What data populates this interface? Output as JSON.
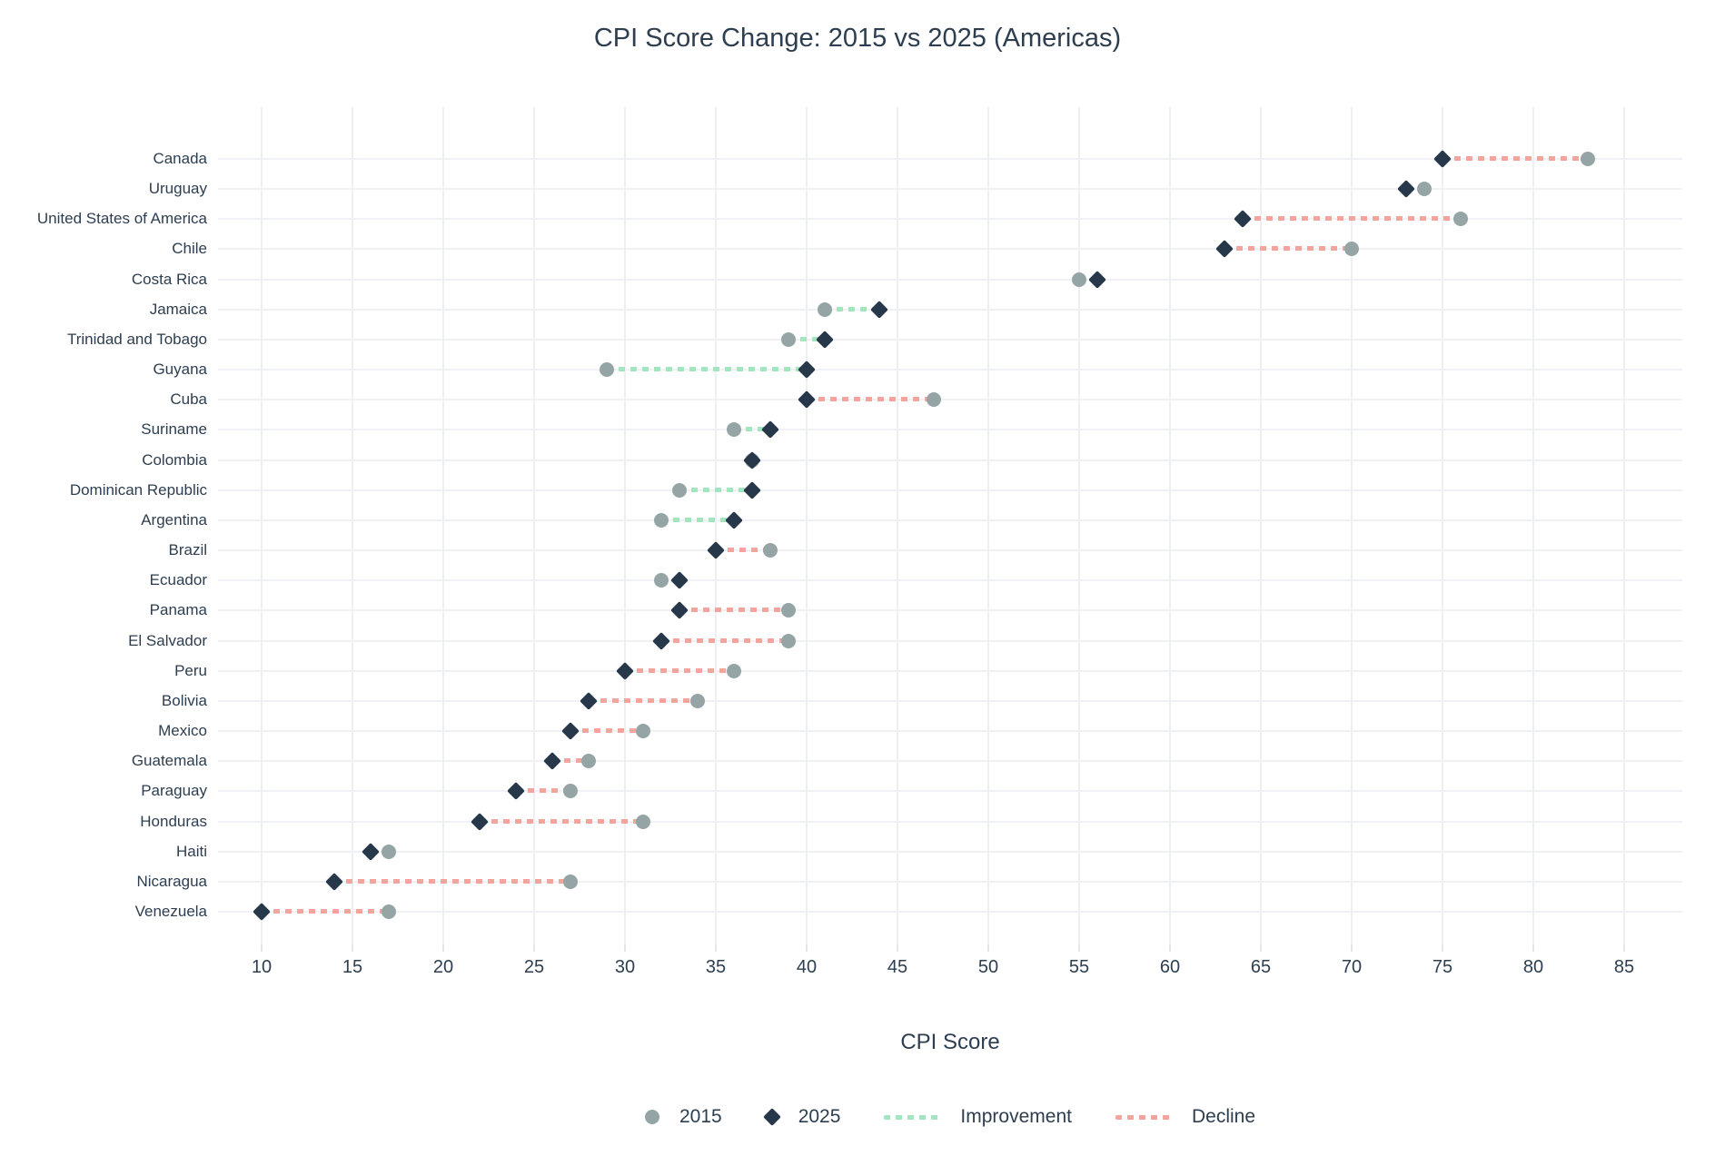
{
  "title": "CPI Score Change: 2015 vs 2025 (Americas)",
  "chart_data": {
    "type": "scatter",
    "variant": "dumbbell",
    "title": "CPI Score Change: 2015 vs 2025 (Americas)",
    "xlabel": "CPI Score",
    "xlim": [
      7.5,
      88
    ],
    "xticks": [
      10,
      15,
      20,
      25,
      30,
      35,
      40,
      45,
      50,
      55,
      60,
      65,
      70,
      75,
      80,
      85
    ],
    "grid": true,
    "legend_position": "bottom",
    "series_names": [
      "2015",
      "2025"
    ],
    "rows": [
      {
        "country": "Canada",
        "y2015": 83,
        "y2025": 75,
        "change": "decline"
      },
      {
        "country": "Uruguay",
        "y2015": 74,
        "y2025": 73,
        "change": "decline"
      },
      {
        "country": "United States of America",
        "y2015": 76,
        "y2025": 64,
        "change": "decline"
      },
      {
        "country": "Chile",
        "y2015": 70,
        "y2025": 63,
        "change": "decline"
      },
      {
        "country": "Costa Rica",
        "y2015": 55,
        "y2025": 56,
        "change": "improvement"
      },
      {
        "country": "Jamaica",
        "y2015": 41,
        "y2025": 44,
        "change": "improvement"
      },
      {
        "country": "Trinidad and Tobago",
        "y2015": 39,
        "y2025": 41,
        "change": "improvement"
      },
      {
        "country": "Guyana",
        "y2015": 29,
        "y2025": 40,
        "change": "improvement"
      },
      {
        "country": "Cuba",
        "y2015": 47,
        "y2025": 40,
        "change": "decline"
      },
      {
        "country": "Suriname",
        "y2015": 36,
        "y2025": 38,
        "change": "improvement"
      },
      {
        "country": "Colombia",
        "y2015": 37,
        "y2025": 37,
        "change": "none"
      },
      {
        "country": "Dominican Republic",
        "y2015": 33,
        "y2025": 37,
        "change": "improvement"
      },
      {
        "country": "Argentina",
        "y2015": 32,
        "y2025": 36,
        "change": "improvement"
      },
      {
        "country": "Brazil",
        "y2015": 38,
        "y2025": 35,
        "change": "decline"
      },
      {
        "country": "Ecuador",
        "y2015": 32,
        "y2025": 33,
        "change": "improvement"
      },
      {
        "country": "Panama",
        "y2015": 39,
        "y2025": 33,
        "change": "decline"
      },
      {
        "country": "El Salvador",
        "y2015": 39,
        "y2025": 32,
        "change": "decline"
      },
      {
        "country": "Peru",
        "y2015": 36,
        "y2025": 30,
        "change": "decline"
      },
      {
        "country": "Bolivia",
        "y2015": 34,
        "y2025": 28,
        "change": "decline"
      },
      {
        "country": "Mexico",
        "y2015": 31,
        "y2025": 27,
        "change": "decline"
      },
      {
        "country": "Guatemala",
        "y2015": 28,
        "y2025": 26,
        "change": "decline"
      },
      {
        "country": "Paraguay",
        "y2015": 27,
        "y2025": 24,
        "change": "decline"
      },
      {
        "country": "Honduras",
        "y2015": 31,
        "y2025": 22,
        "change": "decline"
      },
      {
        "country": "Haiti",
        "y2015": 17,
        "y2025": 16,
        "change": "decline"
      },
      {
        "country": "Nicaragua",
        "y2015": 27,
        "y2025": 14,
        "change": "decline"
      },
      {
        "country": "Venezuela",
        "y2015": 17,
        "y2025": 10,
        "change": "decline"
      }
    ]
  },
  "legend": {
    "items": [
      {
        "type": "dot",
        "label": "2015"
      },
      {
        "type": "diamond",
        "label": "2025"
      },
      {
        "type": "dash-green",
        "label": "Improvement"
      },
      {
        "type": "dash-pink",
        "label": "Decline"
      }
    ]
  },
  "colors": {
    "dot_2015": "#95a5a6",
    "diamond_2025": "#26384a",
    "improvement": "#a2e6bf",
    "decline": "#f3a49c",
    "text": "#2d3e50",
    "grid": "#edeff2"
  }
}
